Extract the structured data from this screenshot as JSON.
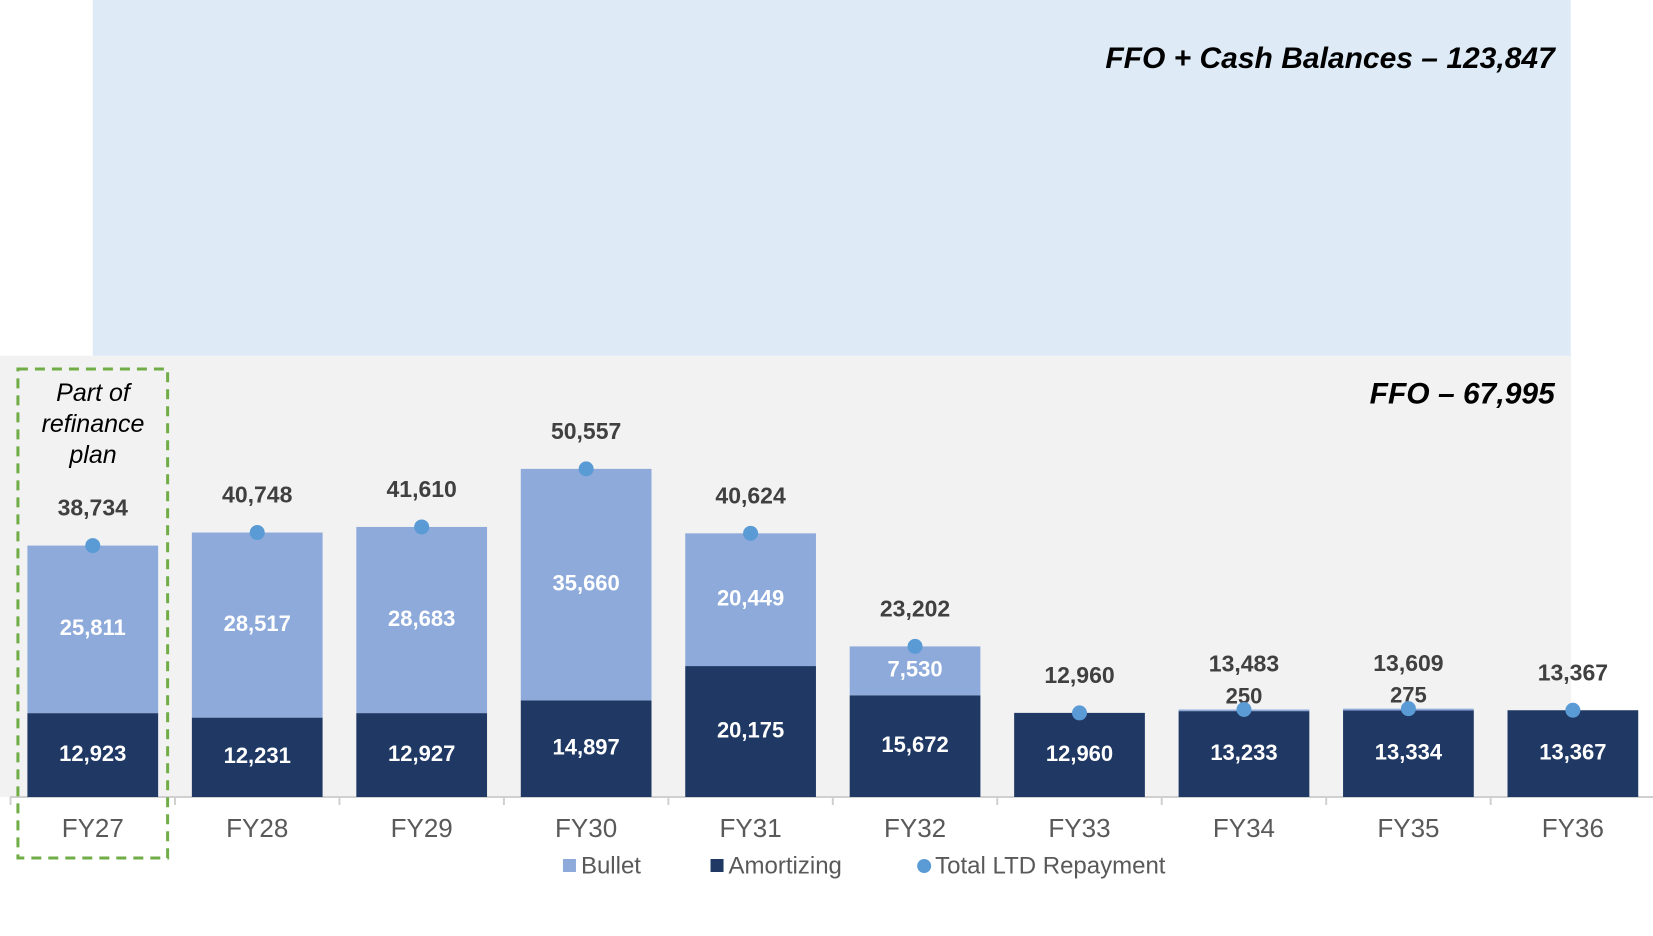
{
  "chart_data": {
    "type": "stacked-bar",
    "categories": [
      "FY27",
      "FY28",
      "FY29",
      "FY30",
      "FY31",
      "FY32",
      "FY33",
      "FY34",
      "FY35",
      "FY36"
    ],
    "series": [
      {
        "name": "Amortizing",
        "color": "#1f3864",
        "values": [
          12923,
          12231,
          12927,
          14897,
          20175,
          15672,
          12960,
          13233,
          13334,
          13367
        ],
        "value_labels": [
          "12,923",
          "12,231",
          "12,927",
          "14,897",
          "20,175",
          "15,672",
          "12,960",
          "13,233",
          "13,334",
          "13,367"
        ]
      },
      {
        "name": "Bullet",
        "color": "#8eaadb",
        "values": [
          25811,
          28517,
          28683,
          35660,
          20449,
          7530,
          null,
          250,
          275,
          null
        ],
        "value_labels": [
          "25,811",
          "28,517",
          "28,683",
          "35,660",
          "20,449",
          "7,530",
          null,
          "250",
          "275",
          null
        ]
      }
    ],
    "total": {
      "name": "Total LTD Repayment",
      "color": "#5b9bd5",
      "values": [
        38734,
        40748,
        41610,
        50557,
        40624,
        23202,
        12960,
        13483,
        13609,
        13367
      ],
      "value_labels": [
        "38,734",
        "40,748",
        "41,610",
        "50,557",
        "40,624",
        "23,202",
        "12,960",
        "13,483",
        "13,609",
        "13,367"
      ]
    },
    "bands": [
      {
        "label": "FFO + Cash Balances – 123,847",
        "value": 123847,
        "color": "#deebf7"
      },
      {
        "label": "FFO – 67,995",
        "value": 67995,
        "color": "#f2f2f2"
      }
    ],
    "annotation": "Part of refinance plan",
    "ylim": [
      0,
      122800
    ]
  }
}
